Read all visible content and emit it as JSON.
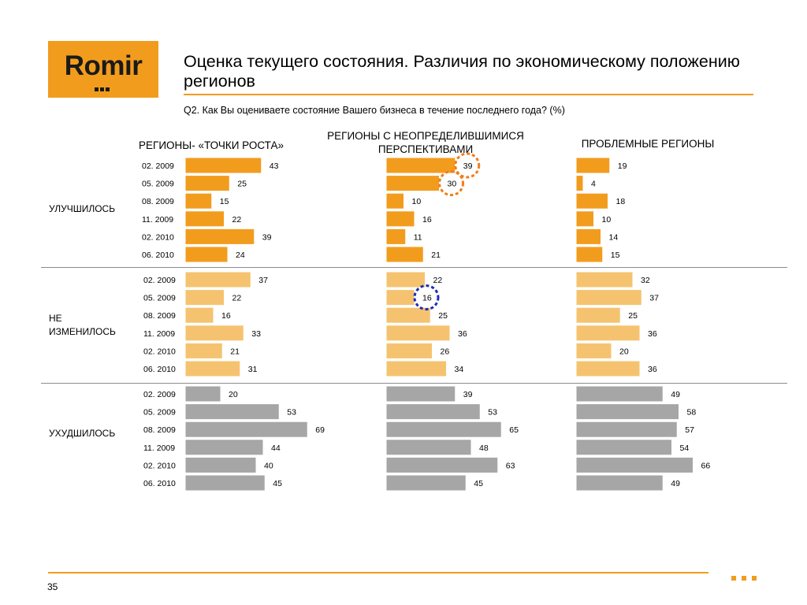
{
  "header": {
    "logo_text": "Romir",
    "title": "Оценка текущего состояния. Различия по экономическому положению регионов",
    "question": "Q2. Как Вы оцениваете состояние Вашего бизнеса в течение последнего года? (%)"
  },
  "colors": {
    "accent": "#f29c1e",
    "improved": "#f29c1e",
    "unchanged": "#f5c36f",
    "worsened": "#a6a6a6",
    "circle_orange": "#f07d1c",
    "circle_blue": "#1c2fb8"
  },
  "footer": {
    "page_number": "35"
  },
  "chart_data": {
    "type": "bar",
    "orientation": "horizontal",
    "periods": [
      "02. 2009",
      "05. 2009",
      "08. 2009",
      "11. 2009",
      "02. 2010",
      "06. 2010"
    ],
    "groups": [
      {
        "name": "РЕГИОНЫ- «ТОЧКИ РОСТА»"
      },
      {
        "name": "РЕГИОНЫ   С НЕОПРЕДЕЛИВШИМИСЯ ПЕРСПЕКТИВАМИ"
      },
      {
        "name": "ПРОБЛЕМНЫЕ РЕГИОНЫ"
      }
    ],
    "categories": [
      {
        "name": "УЛУЧШИЛОСЬ",
        "color": "#f29c1e",
        "values": [
          [
            43,
            25,
            15,
            22,
            39,
            24
          ],
          [
            39,
            30,
            10,
            16,
            11,
            21
          ],
          [
            19,
            4,
            18,
            10,
            14,
            15
          ]
        ]
      },
      {
        "name": "НЕ ИЗМЕНИЛОСЬ",
        "color": "#f5c36f",
        "values": [
          [
            37,
            22,
            16,
            33,
            21,
            31
          ],
          [
            22,
            16,
            25,
            36,
            26,
            34
          ],
          [
            32,
            37,
            25,
            36,
            20,
            36
          ]
        ]
      },
      {
        "name": "УХУДШИЛОСЬ",
        "color": "#a6a6a6",
        "values": [
          [
            20,
            53,
            69,
            44,
            40,
            45
          ],
          [
            39,
            53,
            65,
            48,
            63,
            45
          ],
          [
            49,
            58,
            57,
            54,
            66,
            49
          ]
        ]
      }
    ],
    "highlights": [
      {
        "category": 0,
        "group": 1,
        "period": 0,
        "color": "orange"
      },
      {
        "category": 0,
        "group": 1,
        "period": 1,
        "color": "orange"
      },
      {
        "category": 1,
        "group": 1,
        "period": 1,
        "color": "blue"
      }
    ]
  }
}
